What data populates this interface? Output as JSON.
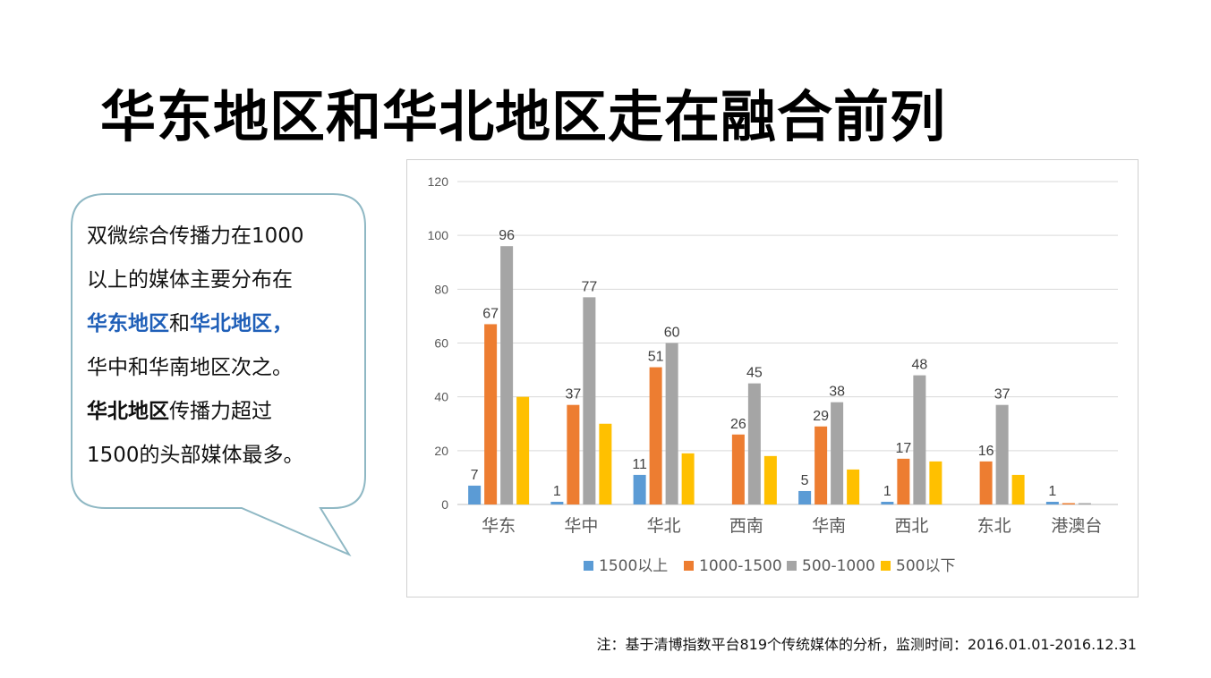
{
  "page": {
    "title": "华东地区和华北地区走在融合前列",
    "note": "注：基于清博指数平台819个传统媒体的分析，监测时间：2016.01.01-2016.12.31"
  },
  "bubble": {
    "line1": "双微综合传播力在1000",
    "line2": "以上的媒体主要分布在",
    "line3_hl1": "华东地区",
    "line3_mid": "和",
    "line3_hl2": "华北地区，",
    "line4": "华中和华南地区次之。",
    "line5_bold": "华北地区",
    "line5_rest": "传播力超过",
    "line6": "1500的头部媒体最多。"
  },
  "colors": {
    "s1": "#5b9bd5",
    "s2": "#ed7d31",
    "s3": "#a5a5a5",
    "s4": "#ffc000",
    "highlight": "#1f5fb8",
    "bubble_border": "#8fb8c4"
  },
  "chart_data": {
    "type": "bar",
    "categories": [
      "华东",
      "华中",
      "华北",
      "西南",
      "华南",
      "西北",
      "东北",
      "港澳台"
    ],
    "series": [
      {
        "name": "1500以上",
        "values": [
          7,
          1,
          11,
          0,
          5,
          1,
          0,
          1
        ]
      },
      {
        "name": "1000-1500",
        "values": [
          67,
          37,
          51,
          26,
          29,
          17,
          16,
          0.5
        ]
      },
      {
        "name": "500-1000",
        "values": [
          96,
          77,
          60,
          45,
          38,
          48,
          37,
          0.5
        ]
      },
      {
        "name": "500以下",
        "values": [
          40,
          30,
          19,
          18,
          13,
          16,
          11,
          0
        ]
      }
    ],
    "data_labels": [
      {
        "series": 0,
        "values": [
          7,
          1,
          11,
          null,
          5,
          1,
          null,
          1
        ]
      },
      {
        "series": 1,
        "values": [
          67,
          37,
          51,
          26,
          29,
          17,
          16,
          null
        ]
      },
      {
        "series": 2,
        "values": [
          96,
          77,
          60,
          45,
          38,
          48,
          37,
          null
        ]
      }
    ],
    "ylim": [
      0,
      120
    ],
    "yticks": [
      0,
      20,
      40,
      60,
      80,
      100,
      120
    ],
    "grid": true,
    "legend": "bottom"
  }
}
